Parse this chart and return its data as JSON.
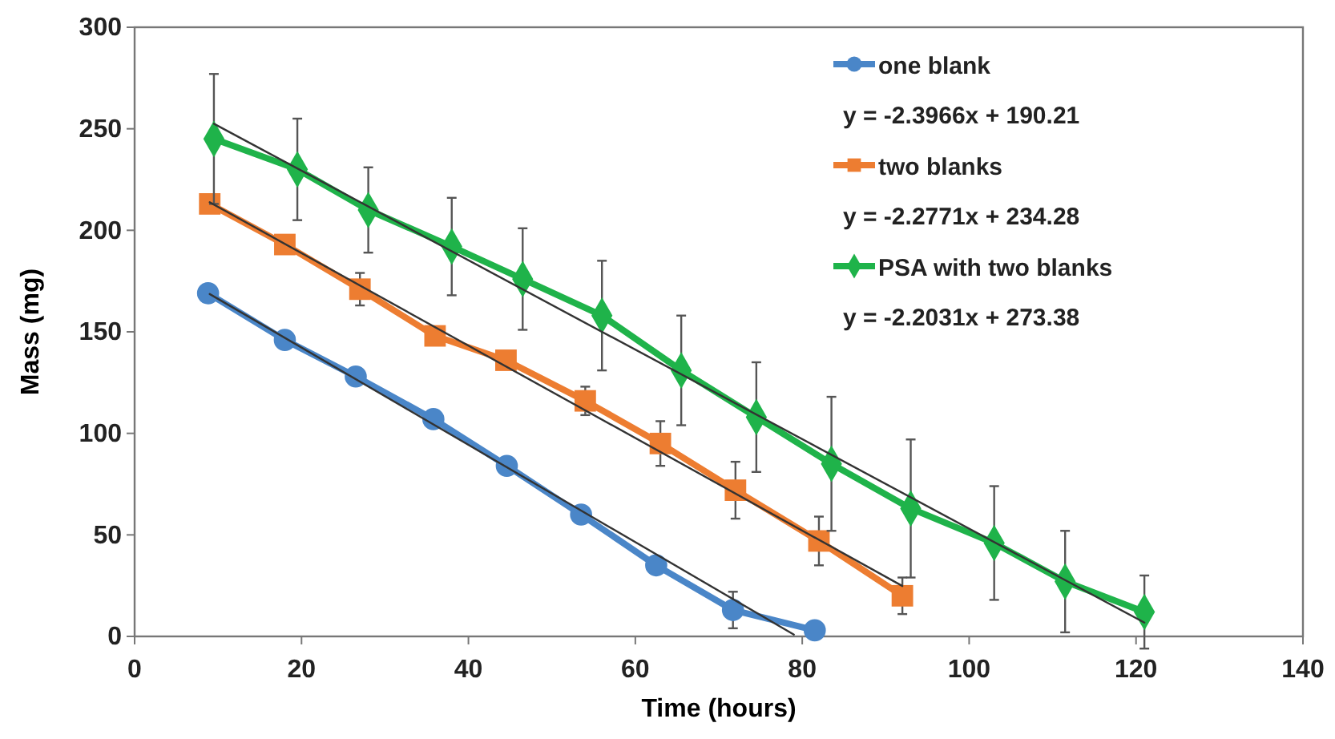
{
  "chart_data": {
    "type": "line",
    "xlabel": "Time (hours)",
    "ylabel": "Mass (mg)",
    "xlim": [
      0,
      140
    ],
    "xticks": [
      0,
      20,
      40,
      60,
      80,
      100,
      120,
      140
    ],
    "ylim": [
      0,
      300
    ],
    "yticks": [
      0,
      50,
      100,
      150,
      200,
      250,
      300
    ],
    "grid": false,
    "legend": "top right",
    "line_style": "solid",
    "annotations": [
      "y = -2.3966x + 190.21",
      "y = -2.2771x + 234.28",
      "y = -2.2031x + 273.38"
    ],
    "series": [
      {
        "name": "one blank",
        "color": "#4a86c8",
        "marker": "circle",
        "x": [
          8.8,
          18,
          26.5,
          35.8,
          44.6,
          53.5,
          62.5,
          71.7,
          81.5
        ],
        "values": [
          169,
          146,
          128,
          107,
          84,
          60,
          35,
          13,
          3
        ],
        "errors": [
          null,
          null,
          null,
          null,
          null,
          null,
          null,
          9,
          null
        ]
      },
      {
        "name": "two blanks",
        "color": "#ed7d31",
        "marker": "square",
        "x": [
          9,
          18,
          27,
          36,
          44.5,
          54,
          63,
          72,
          82,
          92
        ],
        "values": [
          213,
          193,
          171,
          148,
          136,
          116,
          95,
          72,
          47,
          20
        ],
        "errors": [
          null,
          null,
          8,
          null,
          null,
          7,
          11,
          14,
          12,
          9
        ]
      },
      {
        "name": "PSA with two blanks",
        "color": "#1fb34a",
        "marker": "diamond",
        "x": [
          9.5,
          19.5,
          28,
          38,
          46.5,
          56,
          65.5,
          74.5,
          83.5,
          93,
          103,
          111.5,
          121
        ],
        "values": [
          245,
          230,
          210,
          192,
          176,
          158,
          131,
          108,
          85,
          63,
          46,
          27,
          12
        ],
        "errors": [
          32,
          25,
          21,
          24,
          25,
          27,
          27,
          27,
          33,
          34,
          28,
          25,
          18
        ]
      },
      {
        "type": "line",
        "color": "#333333",
        "marker": "none",
        "x": [
          9,
          79
        ],
        "values": [
          168.6,
          0.9
        ]
      },
      {
        "type": "line",
        "color": "#333333",
        "marker": "none",
        "x": [
          9,
          92
        ],
        "values": [
          213.8,
          24.8
        ]
      },
      {
        "type": "line",
        "color": "#333333",
        "marker": "none",
        "x": [
          9.5,
          121
        ],
        "values": [
          252.5,
          6.8
        ]
      }
    ]
  }
}
